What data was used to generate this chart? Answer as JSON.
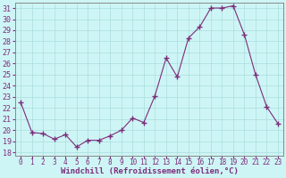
{
  "x": [
    0,
    1,
    2,
    3,
    4,
    5,
    6,
    7,
    8,
    9,
    10,
    11,
    12,
    13,
    14,
    15,
    16,
    17,
    18,
    19,
    20,
    21,
    22,
    23
  ],
  "y": [
    22.5,
    19.8,
    19.7,
    19.2,
    19.6,
    18.5,
    19.1,
    19.1,
    19.5,
    20.0,
    21.1,
    20.7,
    23.1,
    26.5,
    24.8,
    28.3,
    29.3,
    31.0,
    31.0,
    31.2,
    28.6,
    25.0,
    22.1,
    20.6
  ],
  "line_color": "#7B2D7B",
  "marker": "+",
  "marker_size": 4,
  "bg_color": "#cef5f5",
  "grid_color": "#aadddd",
  "xlabel": "Windchill (Refroidissement éolien,°C)",
  "xlabel_fontsize": 6.5,
  "ytick_min": 18,
  "ytick_max": 31,
  "xtick_labels": [
    "0",
    "1",
    "2",
    "3",
    "4",
    "5",
    "6",
    "7",
    "8",
    "9",
    "10",
    "11",
    "12",
    "13",
    "14",
    "15",
    "16",
    "17",
    "18",
    "19",
    "20",
    "21",
    "22",
    "23"
  ],
  "label_color": "#7B2D7B",
  "tick_fontsize": 6,
  "figwidth": 3.2,
  "figheight": 2.0,
  "dpi": 100
}
